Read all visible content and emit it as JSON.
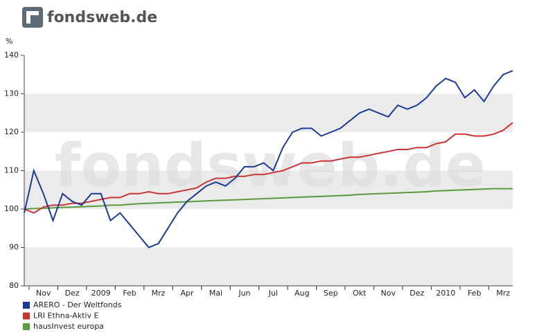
{
  "brand": "fondsweb.de",
  "chart_data": {
    "type": "line",
    "y_unit": "%",
    "categories": [
      null,
      null,
      "Nov",
      null,
      null,
      "Dez",
      null,
      null,
      "2009",
      null,
      null,
      "Feb",
      null,
      null,
      "Mrz",
      null,
      null,
      "Apr",
      null,
      null,
      "Mai",
      null,
      null,
      "Jun",
      null,
      null,
      "Jul",
      null,
      null,
      "Aug",
      null,
      null,
      "Sep",
      null,
      null,
      "Okt",
      null,
      null,
      "Nov",
      null,
      null,
      "Dez",
      null,
      null,
      "2010",
      null,
      null,
      "Feb",
      null,
      null,
      "Mrz",
      null
    ],
    "series": [
      {
        "name": "ARERO - Der Weltfonds",
        "color": "#1a3a98",
        "values": [
          99,
          110,
          104,
          97,
          104,
          102,
          101,
          104,
          104,
          97,
          99,
          96,
          93,
          90,
          91,
          95,
          99,
          102,
          104,
          106,
          107,
          106,
          108,
          111,
          111,
          112,
          110,
          116,
          120,
          121,
          121,
          119,
          120,
          121,
          123,
          125,
          126,
          125,
          124,
          127,
          126,
          127,
          129,
          132,
          134,
          133,
          129,
          131,
          128,
          132,
          135,
          136
        ]
      },
      {
        "name": "LRI Ethna-Aktiv E",
        "color": "#cc3333",
        "values": [
          100,
          99,
          100.5,
          101,
          101,
          101.5,
          101.5,
          102,
          102.5,
          103,
          103,
          104,
          104,
          104.5,
          104,
          104,
          104.5,
          105,
          105.5,
          107,
          108,
          108,
          108.5,
          108.5,
          109,
          109,
          109.5,
          110,
          111,
          112,
          112,
          112.5,
          112.5,
          113,
          113.5,
          113.5,
          114,
          114.5,
          115,
          115.5,
          115.5,
          116,
          116,
          117,
          117.5,
          119.5,
          119.5,
          119,
          119,
          119.5,
          120.5,
          122.5
        ]
      },
      {
        "name": "hausInvest europa",
        "color": "#5a9a3c",
        "values": [
          100,
          100.1,
          100.2,
          100.3,
          100.4,
          100.5,
          100.6,
          100.7,
          100.8,
          101,
          101,
          101.2,
          101.4,
          101.5,
          101.6,
          101.7,
          101.8,
          101.9,
          102,
          102.1,
          102.2,
          102.3,
          102.4,
          102.5,
          102.6,
          102.7,
          102.8,
          102.9,
          103,
          103.1,
          103.2,
          103.3,
          103.4,
          103.5,
          103.6,
          103.8,
          103.9,
          104,
          104.1,
          104.2,
          104.3,
          104.4,
          104.5,
          104.7,
          104.8,
          104.9,
          105,
          105.1,
          105.2,
          105.3,
          105.3,
          105.3
        ]
      }
    ],
    "ylim": [
      80,
      140
    ],
    "yticks": [
      80,
      90,
      100,
      110,
      120,
      130,
      140
    ],
    "grid": "bands"
  }
}
